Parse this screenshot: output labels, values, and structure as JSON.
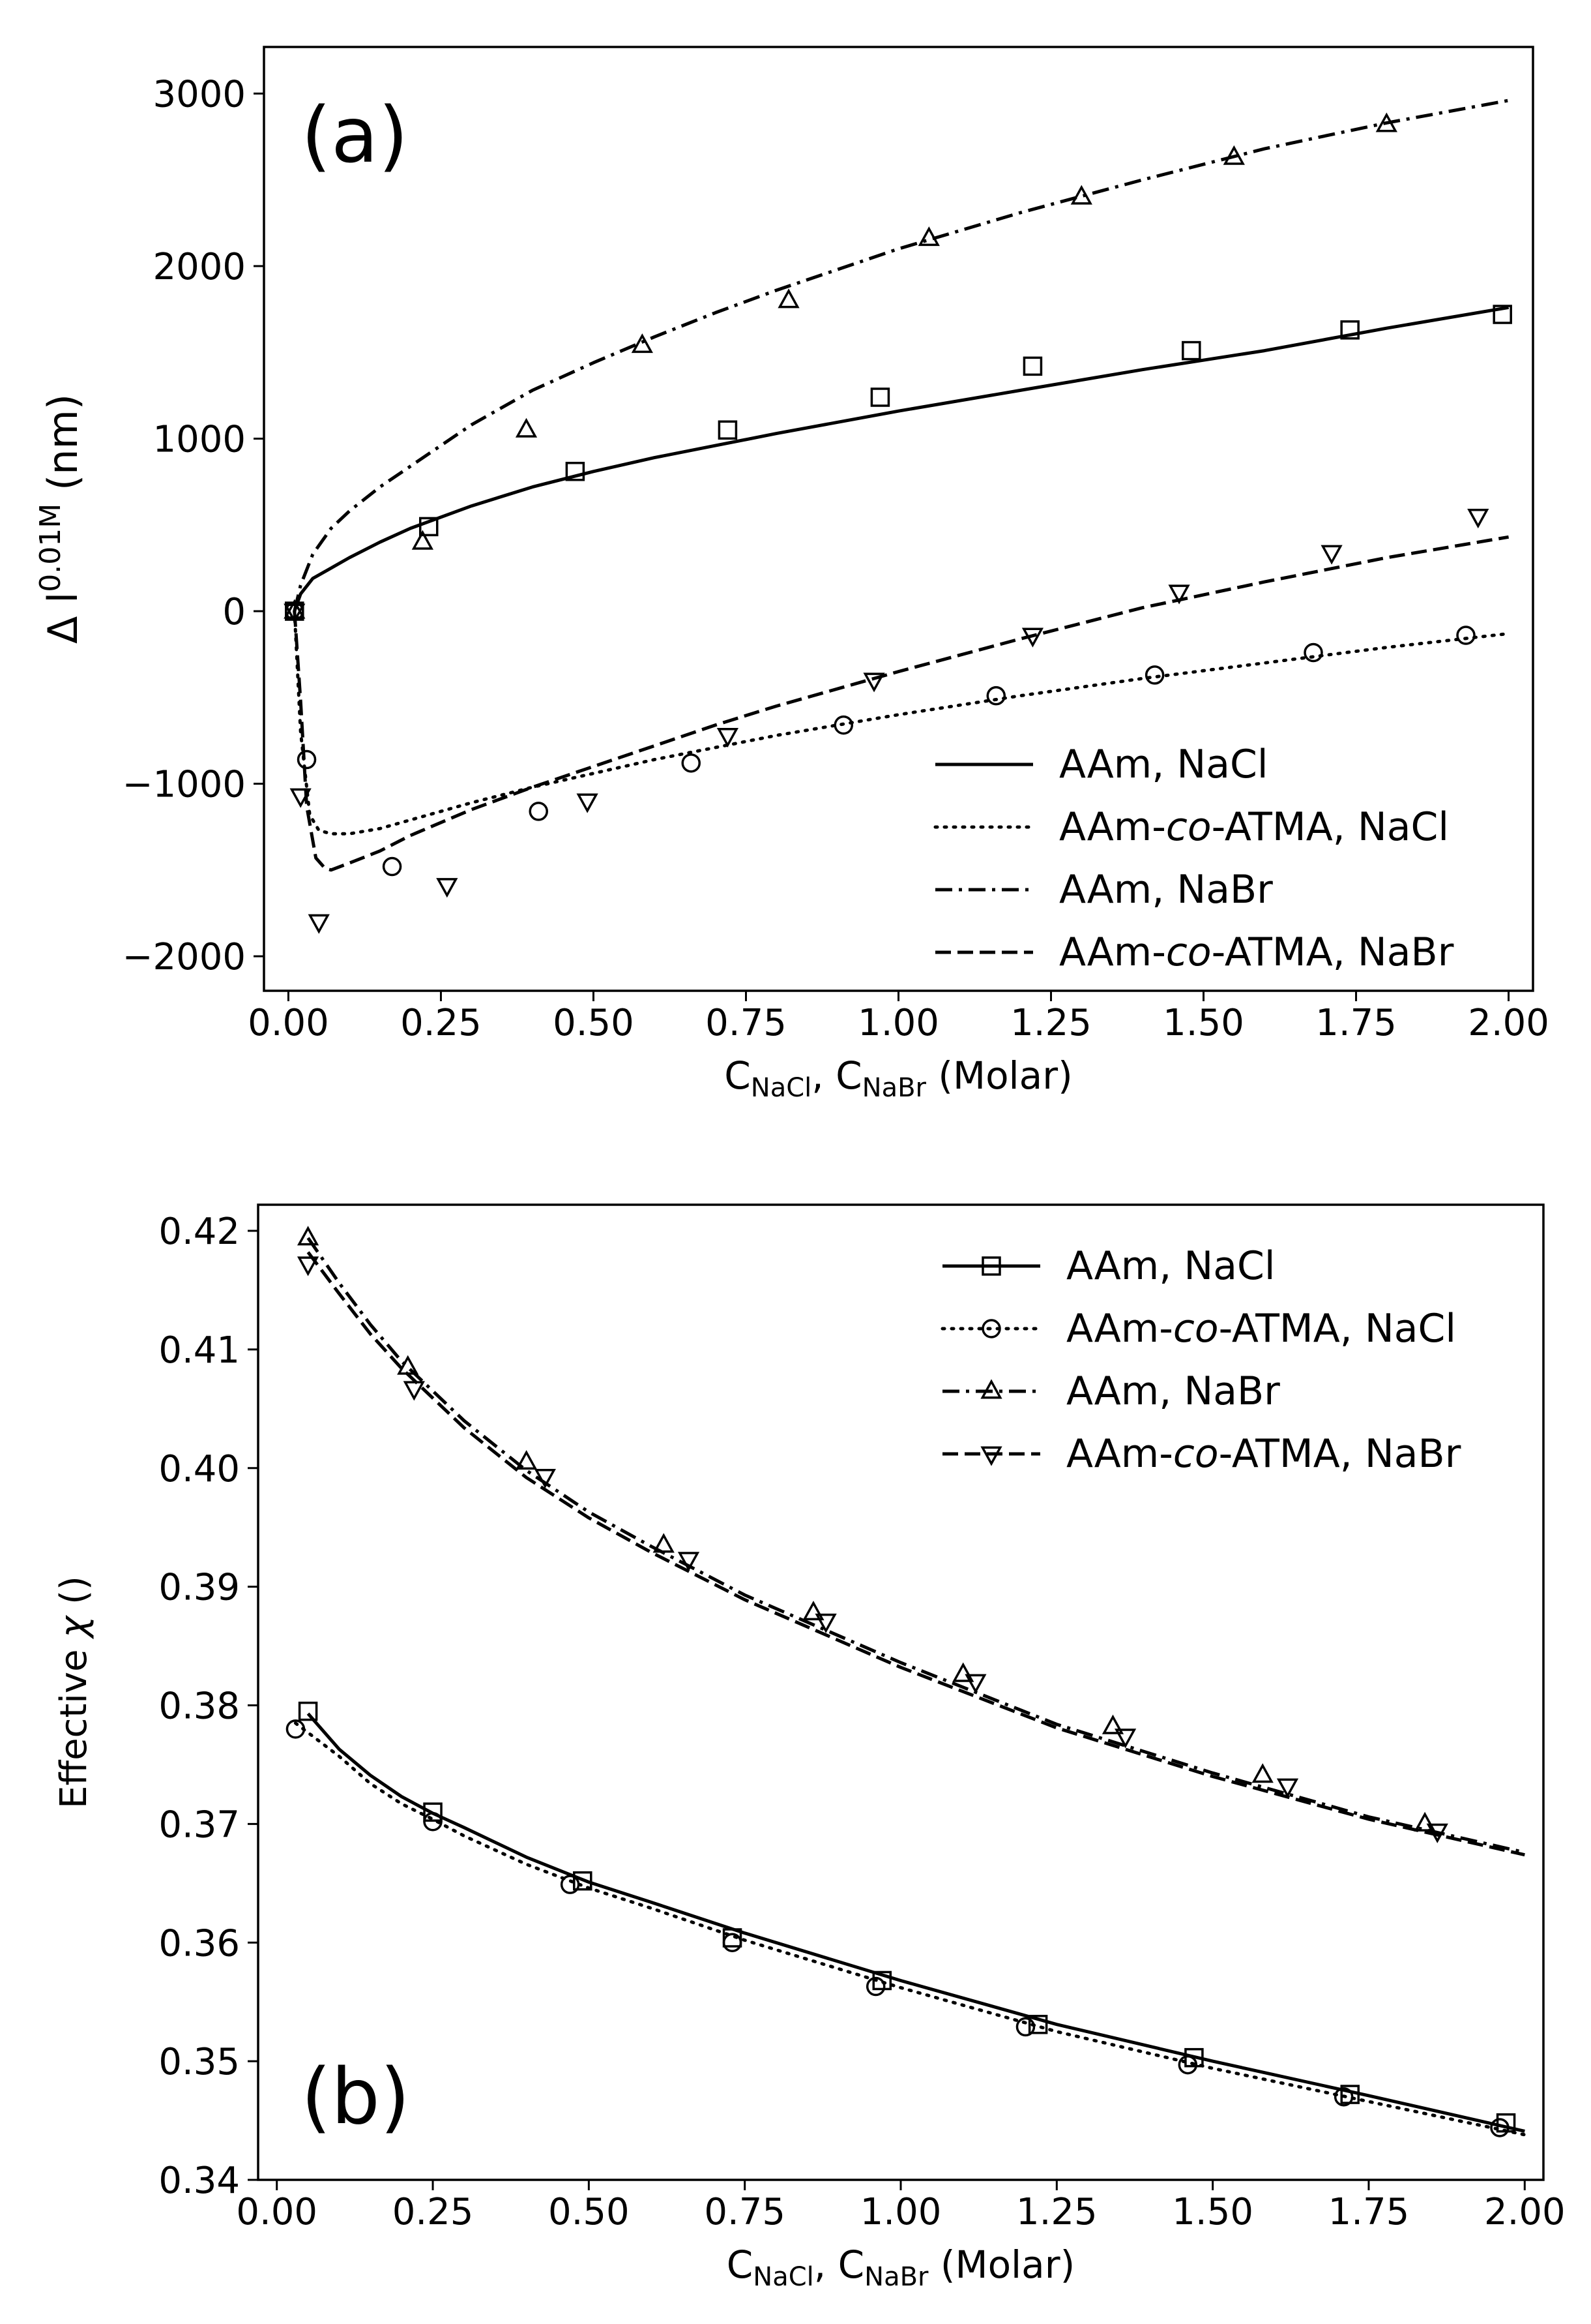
{
  "chart_data": [
    {
      "panel": "(a)",
      "type": "line",
      "xlabel": {
        "main": "C",
        "sub1": "NaCl",
        "sep": ", C",
        "sub2": "NaBr",
        "unit": " (Molar)"
      },
      "ylabel": {
        "main": "Δ l",
        "sup": "0.01M",
        "unit": " (nm)"
      },
      "xlim": [
        -0.04,
        2.04
      ],
      "ylim": [
        -2200,
        3270
      ],
      "xticks": [
        0.0,
        0.25,
        0.5,
        0.75,
        1.0,
        1.25,
        1.5,
        1.75,
        2.0
      ],
      "xtick_labels": [
        "0.00",
        "0.25",
        "0.50",
        "0.75",
        "1.00",
        "1.25",
        "1.50",
        "1.75",
        "2.00"
      ],
      "yticks": [
        -2000,
        -1000,
        0,
        1000,
        2000,
        3000
      ],
      "ytick_labels": [
        "−2000",
        "−1000",
        "0",
        "1000",
        "2000",
        "3000"
      ],
      "legend_position": "lower-right",
      "series": [
        {
          "name": "AAm, NaCl",
          "dash": "solid",
          "marker": "square",
          "line": {
            "x": [
              0.01,
              0.02,
              0.04,
              0.07,
              0.1,
              0.15,
              0.2,
              0.3,
              0.4,
              0.5,
              0.6,
              0.7,
              0.8,
              1.0,
              1.2,
              1.4,
              1.6,
              1.8,
              2.0
            ],
            "y": [
              0,
              100,
              190,
              250,
              310,
              400,
              480,
              610,
              720,
              810,
              890,
              960,
              1030,
              1160,
              1280,
              1400,
              1510,
              1640,
              1760
            ]
          },
          "points": {
            "x": [
              0.01,
              0.23,
              0.47,
              0.72,
              0.97,
              1.22,
              1.48,
              1.74,
              1.99
            ],
            "y": [
              0,
              490,
              810,
              1050,
              1240,
              1420,
              1510,
              1630,
              1720
            ]
          }
        },
        {
          "name": "AAm-co-ATMA, NaCl",
          "name_parts": [
            "AAm-",
            "co",
            "-ATMA, NaCl"
          ],
          "dash": "dotted",
          "marker": "circle",
          "line": {
            "x": [
              0.01,
              0.02,
              0.035,
              0.05,
              0.07,
              0.1,
              0.15,
              0.2,
              0.3,
              0.4,
              0.5,
              0.6,
              0.7,
              0.8,
              1.0,
              1.2,
              1.4,
              1.6,
              1.8,
              2.0
            ],
            "y": [
              0,
              -700,
              -1180,
              -1270,
              -1290,
              -1290,
              -1260,
              -1210,
              -1110,
              -1020,
              -940,
              -860,
              -790,
              -720,
              -600,
              -490,
              -390,
              -300,
              -210,
              -130
            ]
          },
          "points": {
            "x": [
              0.01,
              0.03,
              0.17,
              0.41,
              0.66,
              0.91,
              1.16,
              1.42,
              1.68,
              1.93
            ],
            "y": [
              0,
              -860,
              -1480,
              -1160,
              -880,
              -660,
              -490,
              -370,
              -240,
              -140
            ]
          }
        },
        {
          "name": "AAm, NaBr",
          "dash": "dashdot",
          "marker": "triangle-up",
          "line": {
            "x": [
              0.01,
              0.02,
              0.04,
              0.07,
              0.1,
              0.15,
              0.2,
              0.3,
              0.4,
              0.5,
              0.6,
              0.7,
              0.8,
              1.0,
              1.2,
              1.4,
              1.6,
              1.8,
              2.0
            ],
            "y": [
              0,
              150,
              330,
              480,
              580,
              720,
              840,
              1080,
              1280,
              1440,
              1590,
              1730,
              1860,
              2100,
              2310,
              2500,
              2680,
              2830,
              2960
            ]
          },
          "points": {
            "x": [
              0.01,
              0.22,
              0.39,
              0.58,
              0.82,
              1.05,
              1.3,
              1.55,
              1.8
            ],
            "y": [
              0,
              400,
              1050,
              1540,
              1800,
              2160,
              2400,
              2630,
              2820
            ]
          }
        },
        {
          "name": "AAm-co-ATMA, NaBr",
          "name_parts": [
            "AAm-",
            "co",
            "-ATMA, NaBr"
          ],
          "dash": "dashed",
          "marker": "triangle-down",
          "line": {
            "x": [
              0.01,
              0.02,
              0.03,
              0.045,
              0.06,
              0.07,
              0.1,
              0.15,
              0.2,
              0.3,
              0.4,
              0.5,
              0.6,
              0.7,
              0.8,
              1.0,
              1.2,
              1.4,
              1.6,
              1.8,
              2.0
            ],
            "y": [
              0,
              -520,
              -1130,
              -1430,
              -1490,
              -1500,
              -1460,
              -1390,
              -1300,
              -1150,
              -1020,
              -900,
              -780,
              -660,
              -550,
              -350,
              -160,
              20,
              170,
              310,
              430
            ]
          },
          "points": {
            "x": [
              0.01,
              0.02,
              0.05,
              0.26,
              0.49,
              0.72,
              0.96,
              1.22,
              1.46,
              1.71,
              1.95
            ],
            "y": [
              0,
              -1070,
              -1800,
              -1590,
              -1100,
              -720,
              -400,
              -140,
              110,
              340,
              550
            ]
          }
        }
      ],
      "annotation": "(a)"
    },
    {
      "panel": "(b)",
      "type": "line",
      "xlabel": {
        "main": "C",
        "sub1": "NaCl",
        "sep": ", C",
        "sub2": "NaBr",
        "unit": " (Molar)"
      },
      "ylabel": {
        "main": "Effective ",
        "greek": "χ",
        "unit": " ()"
      },
      "xlim": [
        -0.03,
        2.03
      ],
      "ylim": [
        0.34,
        0.4222
      ],
      "xticks": [
        0.0,
        0.25,
        0.5,
        0.75,
        1.0,
        1.25,
        1.5,
        1.75,
        2.0
      ],
      "xtick_labels": [
        "0.00",
        "0.25",
        "0.50",
        "0.75",
        "1.00",
        "1.25",
        "1.50",
        "1.75",
        "2.00"
      ],
      "yticks": [
        0.34,
        0.35,
        0.36,
        0.37,
        0.38,
        0.39,
        0.4,
        0.41,
        0.42
      ],
      "ytick_labels": [
        "0.34",
        "0.35",
        "0.36",
        "0.37",
        "0.38",
        "0.39",
        "0.40",
        "0.41",
        "0.42"
      ],
      "legend_position": "top-right",
      "series": [
        {
          "name": "AAm, NaCl",
          "dash": "solid",
          "marker": "square",
          "line": {
            "x": [
              0.05,
              0.1,
              0.15,
              0.2,
              0.25,
              0.3,
              0.4,
              0.5,
              0.6,
              0.75,
              1.0,
              1.25,
              1.5,
              1.75,
              2.0
            ],
            "y": [
              0.3793,
              0.3763,
              0.3741,
              0.3723,
              0.3709,
              0.3697,
              0.3672,
              0.3651,
              0.3634,
              0.3608,
              0.3568,
              0.3531,
              0.35,
              0.3471,
              0.3441
            ]
          },
          "points": {
            "x": [
              0.05,
              0.25,
              0.49,
              0.73,
              0.97,
              1.22,
              1.47,
              1.72,
              1.97
            ],
            "y": [
              0.3795,
              0.371,
              0.3652,
              0.3604,
              0.3568,
              0.3531,
              0.3503,
              0.3472,
              0.3448
            ]
          }
        },
        {
          "name": "AAm-co-ATMA, NaCl",
          "name_parts": [
            "AAm-",
            "co",
            "-ATMA, NaCl"
          ],
          "dash": "dotted",
          "marker": "circle",
          "line": {
            "x": [
              0.03,
              0.1,
              0.15,
              0.2,
              0.25,
              0.3,
              0.4,
              0.5,
              0.6,
              0.75,
              1.0,
              1.25,
              1.5,
              1.75,
              2.0
            ],
            "y": [
              0.3785,
              0.3757,
              0.3734,
              0.3717,
              0.3704,
              0.369,
              0.3666,
              0.3646,
              0.3629,
              0.3602,
              0.3562,
              0.3525,
              0.3494,
              0.3466,
              0.3438
            ]
          },
          "points": {
            "x": [
              0.03,
              0.25,
              0.47,
              0.73,
              0.96,
              1.2,
              1.46,
              1.71,
              1.96
            ],
            "y": [
              0.378,
              0.3702,
              0.3649,
              0.36,
              0.3563,
              0.3529,
              0.3497,
              0.347,
              0.3444
            ]
          }
        },
        {
          "name": "AAm, NaBr",
          "dash": "dashdot",
          "marker": "triangle-up",
          "line": {
            "x": [
              0.05,
              0.1,
              0.15,
              0.2,
              0.3,
              0.4,
              0.5,
              0.6,
              0.75,
              1.0,
              1.25,
              1.5,
              1.75,
              2.0
            ],
            "y": [
              0.4194,
              0.4156,
              0.4121,
              0.409,
              0.404,
              0.3998,
              0.3963,
              0.3934,
              0.3893,
              0.3836,
              0.3784,
              0.3743,
              0.3706,
              0.3676
            ]
          },
          "points": {
            "x": [
              0.05,
              0.21,
              0.4,
              0.62,
              0.86,
              1.1,
              1.34,
              1.58,
              1.84
            ],
            "y": [
              0.4194,
              0.4085,
              0.4005,
              0.3935,
              0.3878,
              0.3826,
              0.3782,
              0.3741,
              0.37
            ]
          }
        },
        {
          "name": "AAm-co-ATMA, NaBr",
          "name_parts": [
            "AAm-",
            "co",
            "-ATMA, NaBr"
          ],
          "dash": "dashed",
          "marker": "triangle-down",
          "line": {
            "x": [
              0.05,
              0.1,
              0.15,
              0.2,
              0.3,
              0.4,
              0.5,
              0.6,
              0.75,
              1.0,
              1.25,
              1.5,
              1.75,
              2.0
            ],
            "y": [
              0.4182,
              0.4147,
              0.4113,
              0.4084,
              0.4034,
              0.3992,
              0.3958,
              0.3929,
              0.3889,
              0.3832,
              0.3781,
              0.374,
              0.3704,
              0.3674
            ]
          },
          "points": {
            "x": [
              0.05,
              0.22,
              0.43,
              0.66,
              0.88,
              1.12,
              1.36,
              1.62,
              1.86
            ],
            "y": [
              0.4172,
              0.4067,
              0.3993,
              0.3923,
              0.3871,
              0.382,
              0.3774,
              0.3732,
              0.3694
            ]
          }
        }
      ],
      "annotation": "(b)"
    }
  ]
}
